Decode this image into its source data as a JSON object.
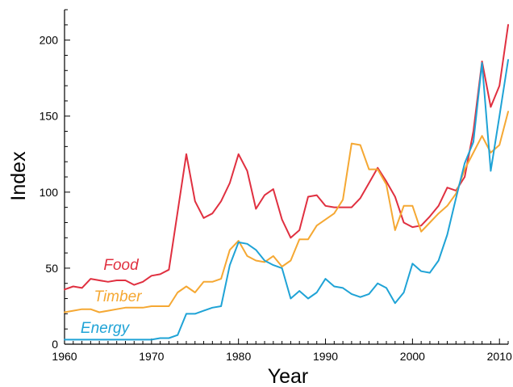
{
  "chart_data": {
    "type": "line",
    "xlabel": "Year",
    "ylabel": "Index",
    "xlim": [
      1960,
      2011
    ],
    "ylim": [
      0,
      220
    ],
    "x_ticks": [
      1960,
      1970,
      1980,
      1990,
      2000,
      2010
    ],
    "y_ticks": [
      0,
      50,
      100,
      150,
      200
    ],
    "grid": false,
    "legend": "inline labels",
    "x": [
      1960,
      1961,
      1962,
      1963,
      1964,
      1965,
      1966,
      1967,
      1968,
      1969,
      1970,
      1971,
      1972,
      1973,
      1974,
      1975,
      1976,
      1977,
      1978,
      1979,
      1980,
      1981,
      1982,
      1983,
      1984,
      1985,
      1986,
      1987,
      1988,
      1989,
      1990,
      1991,
      1992,
      1993,
      1994,
      1995,
      1996,
      1997,
      1998,
      1999,
      2000,
      2001,
      2002,
      2003,
      2004,
      2005,
      2006,
      2007,
      2008,
      2009,
      2010,
      2011
    ],
    "series": [
      {
        "name": "Food",
        "color": "#e03040",
        "values": [
          36,
          38,
          37,
          43,
          42,
          41,
          42,
          42,
          39,
          41,
          45,
          46,
          49,
          87,
          125,
          94,
          83,
          86,
          94,
          106,
          125,
          114,
          89,
          98,
          102,
          82,
          70,
          75,
          97,
          98,
          91,
          90,
          90,
          90,
          96,
          106,
          116,
          107,
          97,
          80,
          77,
          78,
          84,
          91,
          103,
          101,
          110,
          140,
          186,
          156,
          170,
          210
        ]
      },
      {
        "name": "Timber",
        "color": "#f5a833",
        "values": [
          21,
          22,
          23,
          23,
          21,
          22,
          23,
          24,
          24,
          24,
          25,
          25,
          25,
          34,
          38,
          34,
          41,
          41,
          43,
          62,
          68,
          58,
          55,
          54,
          58,
          51,
          55,
          69,
          69,
          78,
          82,
          86,
          95,
          132,
          131,
          115,
          115,
          105,
          75,
          91,
          91,
          74,
          80,
          86,
          91,
          99,
          115,
          126,
          137,
          126,
          131,
          153
        ]
      },
      {
        "name": "Energy",
        "color": "#1fa3d6",
        "values": [
          3,
          3,
          3,
          3,
          3,
          3,
          3,
          3,
          3,
          3,
          3,
          4,
          4,
          6,
          20,
          20,
          22,
          24,
          25,
          52,
          67,
          66,
          62,
          55,
          52,
          50,
          30,
          35,
          30,
          34,
          43,
          38,
          37,
          33,
          31,
          33,
          40,
          37,
          27,
          34,
          53,
          48,
          47,
          55,
          72,
          96,
          119,
          133,
          185,
          114,
          150,
          187
        ]
      }
    ]
  }
}
